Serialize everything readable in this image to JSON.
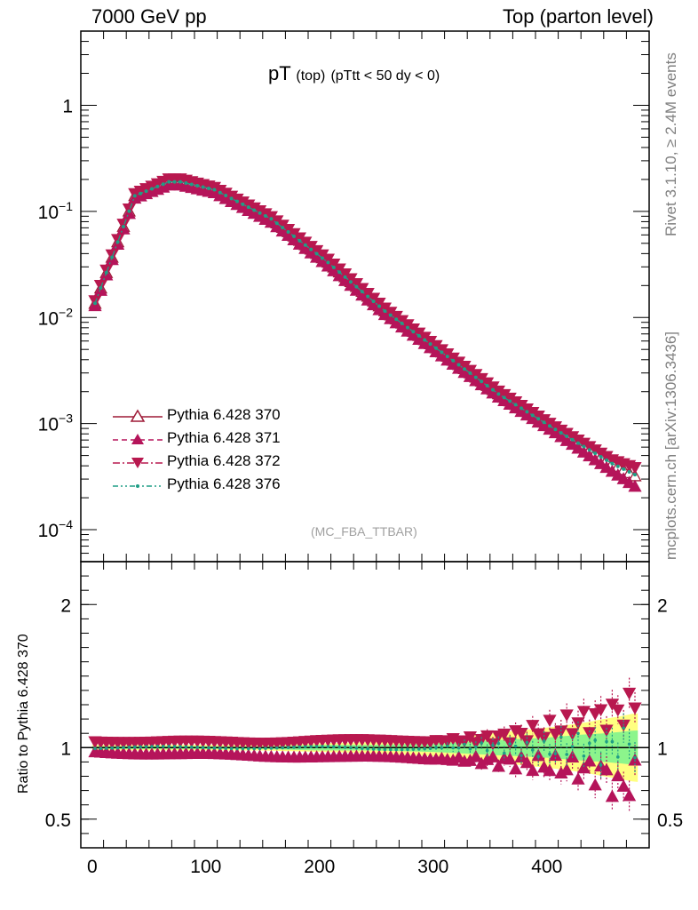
{
  "header": {
    "left": "7000 GeV pp",
    "right": "Top (parton level)"
  },
  "side_labels": {
    "rivet": "Rivet 3.1.10, ≥ 2.4M events",
    "mcplots": "mcplots.cern.ch [arXiv:1306.3436]"
  },
  "plot_title": {
    "main": "pT",
    "sub1": "(top)",
    "sub2": "(pTtt < 50 dy < 0)"
  },
  "watermark": "(MC_FBA_TTBAR)",
  "ratio_ylabel": "Ratio to Pythia 6.428 370",
  "colors": {
    "s370": "#9e1a37",
    "s371": "#b5145a",
    "s372": "#b8184f",
    "s376": "#1f9e86",
    "band_yellow": "#ffff80",
    "band_green": "#8cf58c"
  },
  "chart_data": [
    {
      "type": "line",
      "panel": "main",
      "xlim": [
        -10,
        490
      ],
      "ylim": [
        5e-05,
        5
      ],
      "yscale": "log",
      "yticks": [
        {
          "value": 0.0001,
          "base": "10",
          "exp": "−4"
        },
        {
          "value": 0.001,
          "base": "10",
          "exp": "−3"
        },
        {
          "value": 0.01,
          "base": "10",
          "exp": "−2"
        },
        {
          "value": 0.1,
          "base": "10",
          "exp": "−1"
        },
        {
          "value": 1,
          "base": "1",
          "exp": ""
        }
      ],
      "legend_position": "bottom-left",
      "series": [
        {
          "name": "Pythia 6.428 370",
          "marker": "open-triangle-up",
          "line": "solid",
          "x": [
            2.5,
            37.5,
            67.5,
            77.5,
            107.5,
            157.5,
            207.5,
            257.5,
            307.5,
            357.5,
            407.5,
            457.5,
            477.5
          ],
          "y": [
            0.0135,
            0.14,
            0.19,
            0.19,
            0.16,
            0.085,
            0.033,
            0.0115,
            0.0047,
            0.0019,
            0.00088,
            0.00042,
            0.00032
          ]
        },
        {
          "name": "Pythia 6.428 371",
          "marker": "filled-triangle-up",
          "line": "dashed",
          "x": [
            2.5,
            37.5,
            67.5,
            77.5,
            107.5,
            157.5,
            207.5,
            257.5,
            307.5,
            357.5,
            407.5,
            457.5,
            477.5
          ],
          "y": [
            0.0131,
            0.135,
            0.18,
            0.18,
            0.152,
            0.08,
            0.031,
            0.0108,
            0.0044,
            0.0018,
            0.00083,
            0.00036,
            0.00026
          ]
        },
        {
          "name": "Pythia 6.428 372",
          "marker": "filled-triangle-down",
          "line": "dashdot",
          "x": [
            2.5,
            37.5,
            67.5,
            77.5,
            107.5,
            157.5,
            207.5,
            257.5,
            307.5,
            357.5,
            407.5,
            457.5,
            477.5
          ],
          "y": [
            0.0142,
            0.145,
            0.2,
            0.2,
            0.166,
            0.088,
            0.035,
            0.0121,
            0.0049,
            0.002,
            0.00092,
            0.00045,
            0.00038
          ]
        },
        {
          "name": "Pythia 6.428 376",
          "marker": "dot",
          "line": "dashdotdot",
          "x": [
            2.5,
            37.5,
            67.5,
            77.5,
            107.5,
            157.5,
            207.5,
            257.5,
            307.5,
            357.5,
            407.5,
            457.5,
            477.5
          ],
          "y": [
            0.0136,
            0.14,
            0.19,
            0.19,
            0.16,
            0.085,
            0.033,
            0.0115,
            0.0047,
            0.0019,
            0.00088,
            0.00042,
            0.00033
          ]
        }
      ]
    },
    {
      "type": "scatter",
      "panel": "ratio",
      "xlim": [
        -10,
        490
      ],
      "ylim": [
        0.3,
        2.3
      ],
      "xticks": [
        0,
        100,
        200,
        300,
        400
      ],
      "yticks": [
        0.5,
        1,
        2
      ],
      "series": [
        {
          "name": "Pythia 6.428 371",
          "x": [
            2.5,
            50,
            100,
            150,
            200,
            250,
            300,
            350,
            400,
            430,
            450,
            465,
            477.5
          ],
          "y": [
            0.97,
            0.96,
            0.95,
            0.94,
            0.94,
            0.93,
            0.92,
            0.91,
            0.88,
            0.85,
            0.82,
            0.7,
            0.8
          ]
        },
        {
          "name": "Pythia 6.428 372",
          "x": [
            2.5,
            50,
            100,
            150,
            200,
            250,
            300,
            350,
            400,
            430,
            450,
            465,
            477.5
          ],
          "y": [
            1.05,
            1.04,
            1.04,
            1.04,
            1.05,
            1.05,
            1.05,
            1.06,
            1.12,
            1.18,
            1.22,
            1.25,
            1.3
          ]
        },
        {
          "name": "Pythia 6.428 376",
          "x": [
            2.5,
            50,
            100,
            150,
            200,
            250,
            300,
            350,
            400,
            430,
            450,
            465,
            477.5
          ],
          "y": [
            1.0,
            1.0,
            1.0,
            1.0,
            1.0,
            0.99,
            1.0,
            1.01,
            0.98,
            1.03,
            0.97,
            1.05,
            1.02
          ]
        }
      ],
      "bands": {
        "yellow_halfwidth": [
          0.02,
          0.02,
          0.02,
          0.02,
          0.03,
          0.04,
          0.06,
          0.1,
          0.14,
          0.17,
          0.2,
          0.22,
          0.24
        ],
        "green_halfwidth": [
          0.01,
          0.01,
          0.01,
          0.01,
          0.02,
          0.02,
          0.03,
          0.05,
          0.07,
          0.09,
          0.1,
          0.11,
          0.12
        ]
      }
    }
  ]
}
